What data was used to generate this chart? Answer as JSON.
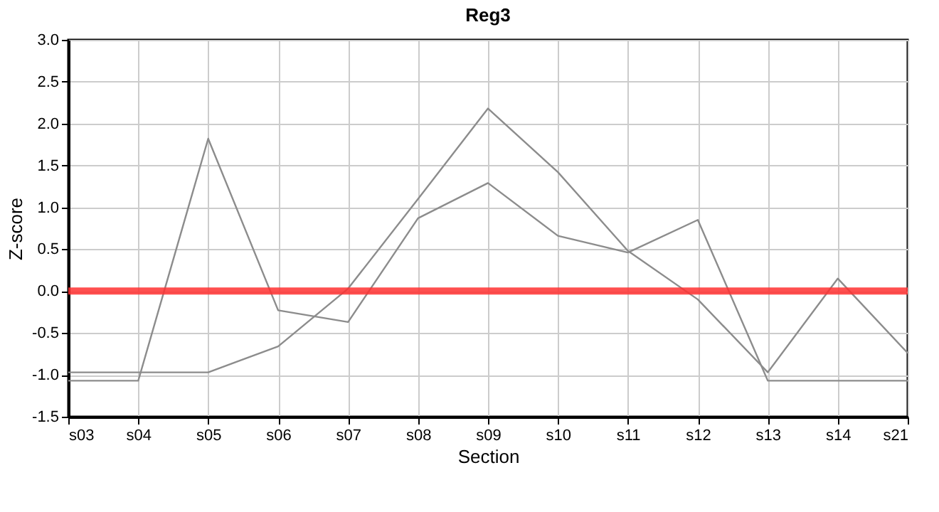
{
  "chart_data": {
    "type": "line",
    "title": "Reg3",
    "xlabel": "Section",
    "ylabel": "Z-score",
    "categories": [
      "s03",
      "s04",
      "s05",
      "s06",
      "s07",
      "s08",
      "s09",
      "s10",
      "s11",
      "s12",
      "s13",
      "s14",
      "s21"
    ],
    "series": [
      {
        "color": "#8c8c8c",
        "values": [
          -1.07,
          -1.07,
          1.82,
          -0.23,
          -0.37,
          0.87,
          1.29,
          0.66,
          0.46,
          0.85,
          -1.07,
          -1.07,
          -1.07
        ]
      },
      {
        "color": "#8c8c8c",
        "values": [
          -0.97,
          -0.97,
          -0.97,
          -0.66,
          0.03,
          1.1,
          2.18,
          1.42,
          0.48,
          -0.1,
          -0.97,
          0.15,
          -0.74
        ]
      }
    ],
    "ylim": [
      -1.5,
      3.0
    ],
    "yticks": [
      {
        "value": -1.5,
        "label": "-1.5"
      },
      {
        "value": -1,
        "label": "-1.0"
      },
      {
        "value": -0.5,
        "label": "-0.5"
      },
      {
        "value": 0,
        "label": "0.0"
      },
      {
        "value": 0.5,
        "label": "0.5"
      },
      {
        "value": 1,
        "label": "1.0"
      },
      {
        "value": 1.5,
        "label": "1.5"
      },
      {
        "value": 2,
        "label": "2.0"
      },
      {
        "value": 2.5,
        "label": "2.5"
      },
      {
        "value": 3,
        "label": "3.0"
      }
    ],
    "ref_lines": [
      {
        "axis": "y",
        "value": 0,
        "color": "#ff3030"
      }
    ],
    "grid": true,
    "marker": "none",
    "line_style": "solid"
  }
}
